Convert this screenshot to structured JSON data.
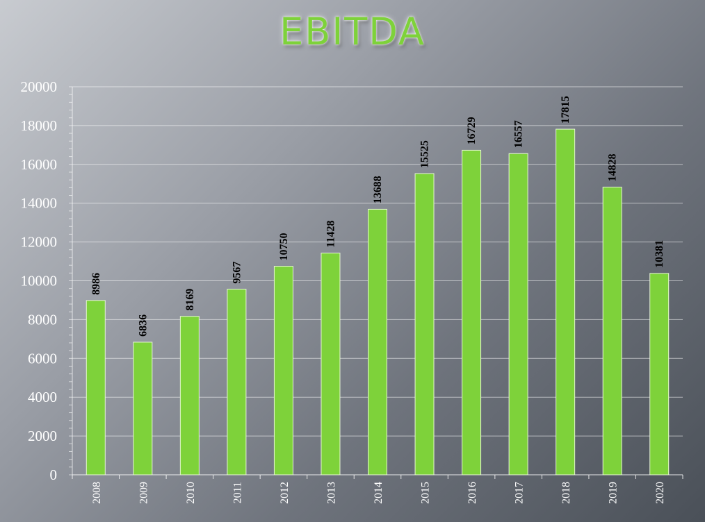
{
  "chart_data": {
    "type": "bar",
    "title": "EBITDA",
    "categories": [
      "2008",
      "2009",
      "2010",
      "2011",
      "2012",
      "2013",
      "2014",
      "2015",
      "2016",
      "2017",
      "2018",
      "2019",
      "2020"
    ],
    "values": [
      8986,
      6836,
      8169,
      9567,
      10750,
      11428,
      13688,
      15525,
      16729,
      16557,
      17815,
      14828,
      10381
    ],
    "xlabel": "",
    "ylabel": "",
    "ylim": [
      0,
      20000
    ],
    "yticks": [
      0,
      2000,
      4000,
      6000,
      8000,
      10000,
      12000,
      14000,
      16000,
      18000,
      20000
    ],
    "grid": true,
    "data_labels": true,
    "bar_color": "#7ed23a",
    "text_color": "#ffffff",
    "label_color": "#000000"
  }
}
